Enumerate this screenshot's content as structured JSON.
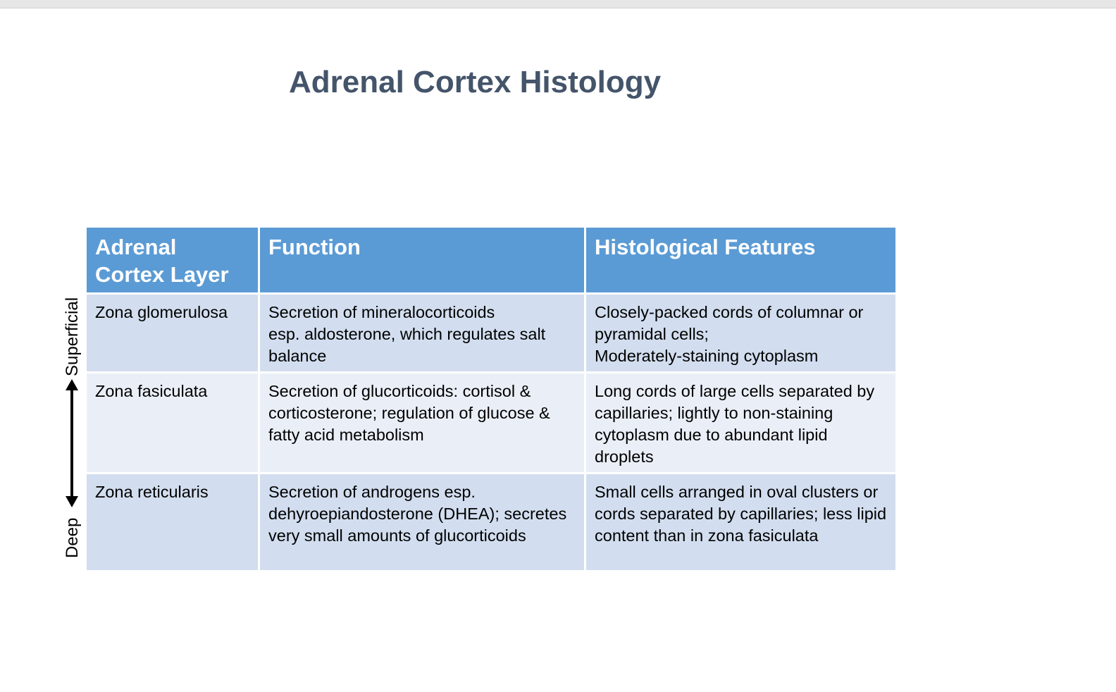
{
  "title": "Adrenal Cortex Histology",
  "depth_axis": {
    "top_label": "Superficial",
    "bottom_label": "Deep"
  },
  "table": {
    "headers": [
      "Adrenal Cortex Layer",
      "Function",
      "Histological Features"
    ],
    "rows": [
      {
        "layer": "Zona glomerulosa",
        "function": "Secretion of mineralocorticoids\nesp. aldosterone, which regulates salt balance",
        "features": "Closely-packed cords of columnar or pyramidal cells;\nModerately-staining cytoplasm"
      },
      {
        "layer": "Zona fasiculata",
        "function": "Secretion of glucorticoids: cortisol & corticosterone; regulation of glucose & fatty acid metabolism",
        "features": "Long cords of large cells separated by capillaries; lightly to non-staining cytoplasm due to abundant lipid droplets"
      },
      {
        "layer": "Zona reticularis",
        "function": "Secretion of androgens esp. dehyroepiandosterone (DHEA); secretes very small amounts of glucorticoids",
        "features": "Small cells arranged in oval clusters or cords separated by capillaries; less lipid content than in zona fasiculata"
      }
    ]
  },
  "colors": {
    "title": "#44546a",
    "header_bg": "#5b9bd5",
    "row_dark": "#d2deef",
    "row_light": "#eaeff7"
  }
}
